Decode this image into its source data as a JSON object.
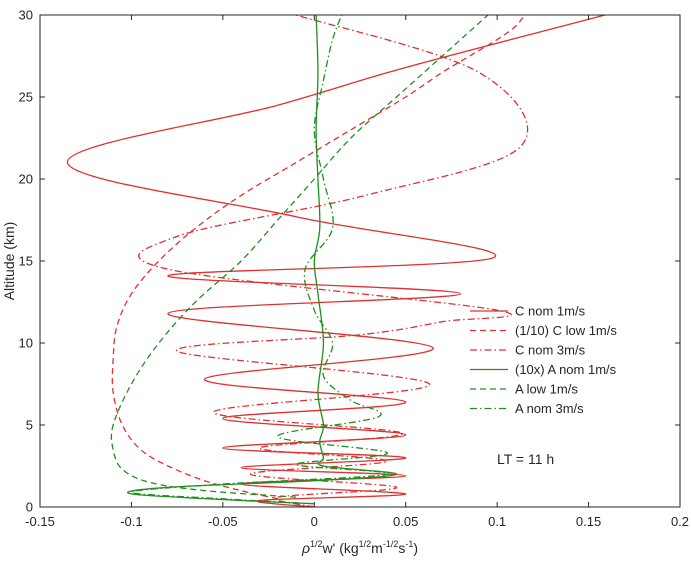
{
  "chart_data": {
    "type": "line",
    "title": "",
    "xlabel": "ρ1/2w' (kg1/2m-1/2s-1)",
    "xlabel_parts": {
      "rho": "ρ",
      "rho_exp": "1/2",
      "w": "w' (kg",
      "kg_exp": "1/2",
      "m": "m",
      "m_exp": "-1/2",
      "s": "s",
      "s_exp": "-1",
      "close": ")"
    },
    "ylabel": "Altitude (km)",
    "xlim": [
      -0.15,
      0.2
    ],
    "ylim": [
      0,
      30
    ],
    "xticks": [
      -0.15,
      -0.1,
      -0.05,
      0,
      0.05,
      0.1,
      0.15,
      0.2
    ],
    "xtick_labels": [
      "-0.15",
      "-0.1",
      "-0.05",
      "0",
      "0.05",
      "0.1",
      "0.15",
      "0.2"
    ],
    "yticks": [
      0,
      5,
      10,
      15,
      20,
      25,
      30
    ],
    "ytick_labels": [
      "0",
      "5",
      "10",
      "15",
      "20",
      "25",
      "30"
    ],
    "grid": false,
    "legend_position": "right",
    "annotation": "LT = 11 h",
    "series": [
      {
        "name": "C nom 1m/s",
        "color": "#e03030",
        "style": "solid",
        "x": [
          0.0,
          -0.03,
          0.05,
          -0.04,
          0.05,
          -0.04,
          0.05,
          -0.05,
          0.05,
          -0.05,
          0.05,
          -0.06,
          0.065,
          -0.08,
          0.08,
          -0.08,
          0.098,
          -0.01,
          -0.135,
          -0.02,
          0.05,
          0.159
        ],
        "y": [
          0.0,
          0.4,
          0.8,
          1.4,
          1.9,
          2.4,
          3.0,
          3.6,
          4.4,
          5.4,
          6.4,
          7.8,
          9.7,
          11.8,
          13.0,
          14.1,
          15.2,
          17.7,
          21.0,
          24.5,
          26.8,
          30.0
        ]
      },
      {
        "name": "(1/10) C low 1m/s",
        "color": "#e03030",
        "style": "dashed",
        "x": [
          -0.02,
          -0.04,
          -0.06,
          -0.08,
          -0.095,
          -0.105,
          -0.11,
          -0.11,
          -0.108,
          -0.1,
          -0.085,
          -0.065,
          -0.04,
          -0.01,
          0.02,
          0.05,
          0.07,
          0.085,
          0.1,
          0.11,
          0.115
        ],
        "y": [
          0.5,
          1.0,
          1.6,
          2.5,
          3.5,
          5.0,
          7.0,
          9.0,
          11.0,
          13.0,
          15.0,
          17.0,
          19.0,
          21.0,
          23.0,
          25.0,
          26.5,
          27.5,
          28.5,
          29.3,
          30.0
        ]
      },
      {
        "name": "C nom 3m/s",
        "color": "#e03030",
        "style": "dashdot",
        "x": [
          0.0,
          -0.02,
          0.045,
          -0.035,
          0.04,
          -0.03,
          0.048,
          -0.055,
          0.063,
          -0.075,
          0.025,
          0.07,
          0.1,
          -0.08,
          -0.075,
          0.028,
          0.113,
          0.09,
          -0.01
        ],
        "y": [
          0.0,
          0.6,
          1.2,
          2.0,
          2.8,
          3.6,
          4.5,
          5.8,
          7.5,
          9.5,
          10.5,
          11.3,
          12.0,
          14.5,
          16.5,
          19.0,
          22.0,
          26.5,
          30.0
        ]
      },
      {
        "name": "(10x) A nom 1m/s",
        "color": "#1f8f1f",
        "style": "solid",
        "x": [
          0.0,
          -0.04,
          -0.1,
          -0.08,
          0.0,
          0.045,
          0.005,
          0.005,
          0.003,
          0.005,
          0.002,
          0.005,
          0.002,
          0.0,
          0.003,
          0.002,
          0.001,
          0.002,
          0.001
        ],
        "y": [
          0.2,
          0.4,
          0.8,
          1.2,
          1.6,
          2.0,
          2.5,
          3.0,
          4.0,
          5.0,
          7.0,
          10.0,
          13.0,
          15.0,
          17.0,
          20.0,
          23.0,
          26.5,
          30.0
        ]
      },
      {
        "name": "A low 1m/s",
        "color": "#1f8f1f",
        "style": "dashed",
        "x": [
          -0.01,
          -0.06,
          -0.09,
          -0.105,
          -0.11,
          -0.11,
          -0.1,
          -0.085,
          -0.065,
          -0.04,
          -0.02,
          0.0,
          0.02,
          0.045,
          0.065,
          0.08,
          0.09,
          0.095
        ],
        "y": [
          0.6,
          1.0,
          1.5,
          2.3,
          3.5,
          5.0,
          7.5,
          10.0,
          12.5,
          15.0,
          17.5,
          20.0,
          22.5,
          25.0,
          27.0,
          28.5,
          29.5,
          30.0
        ]
      },
      {
        "name": "A nom 3m/s",
        "color": "#1f8f1f",
        "style": "dashdot",
        "x": [
          0.0,
          -0.05,
          -0.1,
          -0.05,
          0.04,
          -0.01,
          0.04,
          -0.02,
          0.035,
          0.02,
          0.005,
          0.01,
          0.0,
          -0.005,
          0.01,
          0.005,
          0.0,
          0.005,
          0.01,
          0.015
        ],
        "y": [
          0.2,
          0.5,
          0.9,
          1.4,
          2.0,
          2.6,
          3.3,
          4.3,
          5.5,
          6.5,
          8.0,
          10.0,
          12.0,
          14.5,
          17.0,
          20.0,
          23.0,
          26.0,
          28.5,
          30.0
        ]
      }
    ]
  }
}
